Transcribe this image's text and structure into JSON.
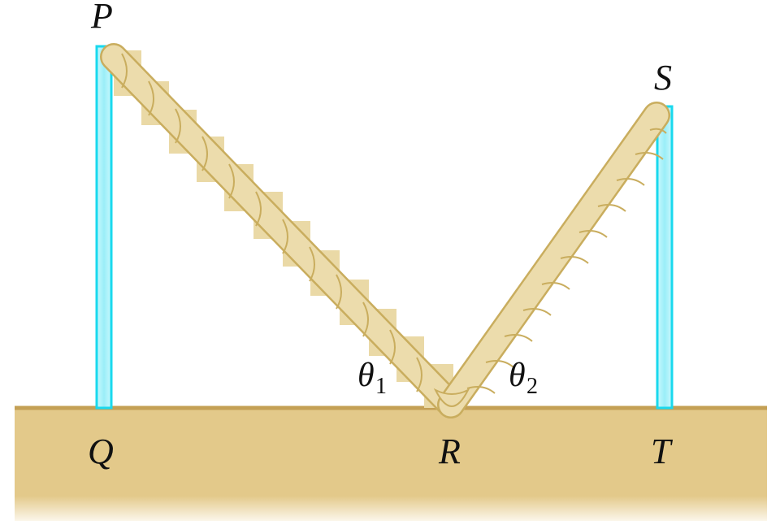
{
  "diagram": {
    "points": {
      "P": "P",
      "Q": "Q",
      "R": "R",
      "S": "S",
      "T": "T"
    },
    "angles": {
      "theta1": {
        "symbol": "θ",
        "subscript": "1"
      },
      "theta2": {
        "symbol": "θ",
        "subscript": "2"
      }
    },
    "colors": {
      "pole_fill": "#aef3fb",
      "pole_stroke": "#19d9ee",
      "rope": "#e8d49a",
      "rope_dark": "#c9ad5e",
      "ground_top": "#c8a55a",
      "ground_fill": "#e3c98a",
      "ground_fade": "#ffffff"
    }
  }
}
